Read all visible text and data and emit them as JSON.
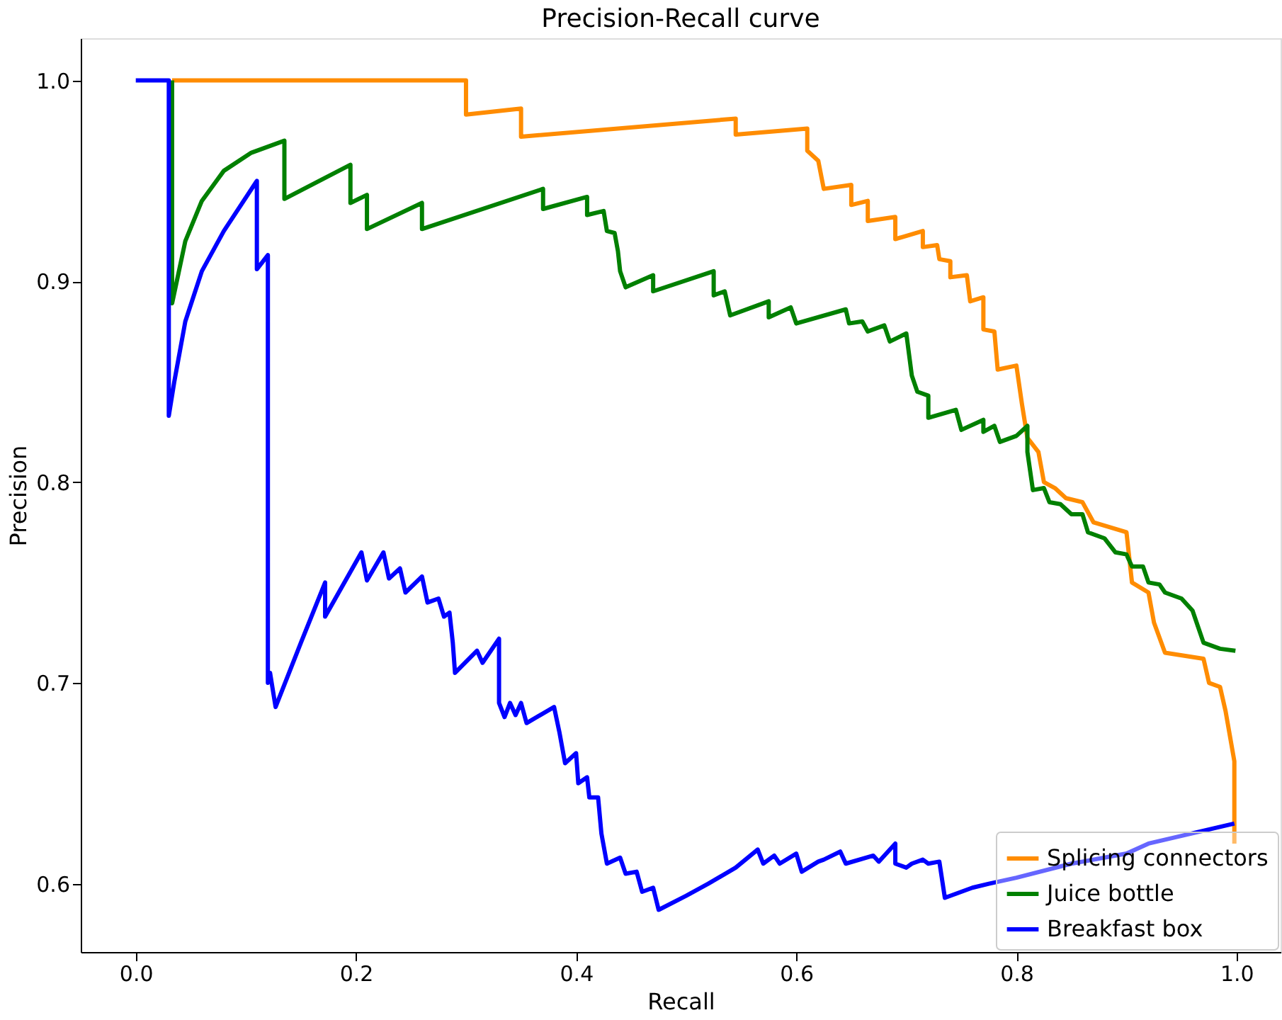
{
  "chart_data": {
    "type": "line",
    "title": "Precision-Recall curve",
    "xlabel": "Recall",
    "ylabel": "Precision",
    "xlim": [
      -0.05,
      1.04
    ],
    "ylim": [
      0.566,
      1.021
    ],
    "xticks": [
      {
        "value": 0,
        "label": "0.0"
      },
      {
        "value": 0.2,
        "label": "0.2"
      },
      {
        "value": 0.4,
        "label": "0.4"
      },
      {
        "value": 0.6,
        "label": "0.6"
      },
      {
        "value": 0.8,
        "label": "0.8"
      },
      {
        "value": 1,
        "label": "1.0"
      }
    ],
    "yticks": [
      {
        "value": 0.6,
        "label": "0.6"
      },
      {
        "value": 0.7,
        "label": "0.7"
      },
      {
        "value": 0.8,
        "label": "0.8"
      },
      {
        "value": 0.9,
        "label": "0.9"
      },
      {
        "value": 1,
        "label": "1.0"
      }
    ],
    "grid": false,
    "legend": "bottom right",
    "line_style": "solid",
    "marker": "none",
    "series": [
      {
        "name": "Splicing connectors",
        "color": "#ff8c00",
        "x": [
          0.033,
          0.3,
          0.3,
          0.35,
          0.35,
          0.545,
          0.545,
          0.61,
          0.61,
          0.62,
          0.625,
          0.65,
          0.65,
          0.665,
          0.665,
          0.69,
          0.69,
          0.715,
          0.715,
          0.728,
          0.73,
          0.74,
          0.74,
          0.755,
          0.758,
          0.77,
          0.77,
          0.78,
          0.783,
          0.8,
          0.805,
          0.81,
          0.82,
          0.825,
          0.835,
          0.845,
          0.86,
          0.87,
          0.9,
          0.905,
          0.92,
          0.925,
          0.935,
          0.97,
          0.975,
          0.985,
          0.99,
          0.998,
          0.998
        ],
        "values": [
          1.0,
          1.0,
          0.983,
          0.986,
          0.972,
          0.981,
          0.973,
          0.976,
          0.965,
          0.96,
          0.946,
          0.948,
          0.938,
          0.94,
          0.93,
          0.932,
          0.921,
          0.925,
          0.917,
          0.918,
          0.911,
          0.91,
          0.902,
          0.903,
          0.89,
          0.892,
          0.876,
          0.875,
          0.856,
          0.858,
          0.839,
          0.822,
          0.815,
          0.8,
          0.797,
          0.792,
          0.79,
          0.78,
          0.775,
          0.75,
          0.745,
          0.73,
          0.715,
          0.712,
          0.7,
          0.698,
          0.686,
          0.661,
          0.62
        ]
      },
      {
        "name": "Juice bottle",
        "color": "#008000",
        "x": [
          0.033,
          0.033,
          0.045,
          0.06,
          0.08,
          0.105,
          0.135,
          0.135,
          0.195,
          0.195,
          0.21,
          0.21,
          0.26,
          0.26,
          0.37,
          0.37,
          0.41,
          0.41,
          0.425,
          0.428,
          0.435,
          0.438,
          0.44,
          0.445,
          0.47,
          0.47,
          0.525,
          0.525,
          0.535,
          0.54,
          0.575,
          0.575,
          0.595,
          0.6,
          0.645,
          0.648,
          0.66,
          0.665,
          0.68,
          0.685,
          0.7,
          0.705,
          0.71,
          0.72,
          0.72,
          0.745,
          0.75,
          0.77,
          0.77,
          0.78,
          0.785,
          0.8,
          0.81,
          0.81,
          0.815,
          0.825,
          0.83,
          0.84,
          0.85,
          0.86,
          0.865,
          0.88,
          0.89,
          0.9,
          0.905,
          0.915,
          0.92,
          0.93,
          0.935,
          0.95,
          0.96,
          0.965,
          0.97,
          0.985,
          0.999
        ],
        "values": [
          1.0,
          0.889,
          0.92,
          0.94,
          0.955,
          0.964,
          0.97,
          0.941,
          0.958,
          0.939,
          0.943,
          0.926,
          0.939,
          0.926,
          0.946,
          0.936,
          0.942,
          0.933,
          0.935,
          0.925,
          0.924,
          0.915,
          0.905,
          0.897,
          0.903,
          0.895,
          0.905,
          0.893,
          0.895,
          0.883,
          0.89,
          0.882,
          0.887,
          0.879,
          0.886,
          0.879,
          0.88,
          0.875,
          0.878,
          0.87,
          0.874,
          0.853,
          0.845,
          0.843,
          0.832,
          0.836,
          0.826,
          0.831,
          0.825,
          0.828,
          0.82,
          0.823,
          0.828,
          0.815,
          0.796,
          0.797,
          0.79,
          0.789,
          0.784,
          0.784,
          0.775,
          0.772,
          0.765,
          0.764,
          0.758,
          0.758,
          0.75,
          0.749,
          0.745,
          0.742,
          0.736,
          0.728,
          0.72,
          0.717,
          0.716
        ]
      },
      {
        "name": "Breakfast box",
        "color": "#0000ff",
        "x": [
          0,
          0.03,
          0.03,
          0.035,
          0.045,
          0.06,
          0.08,
          0.11,
          0.11,
          0.12,
          0.12,
          0.122,
          0.127,
          0.15,
          0.172,
          0.172,
          0.205,
          0.21,
          0.225,
          0.23,
          0.24,
          0.245,
          0.26,
          0.265,
          0.275,
          0.28,
          0.285,
          0.288,
          0.29,
          0.31,
          0.315,
          0.33,
          0.33,
          0.335,
          0.34,
          0.345,
          0.35,
          0.355,
          0.38,
          0.385,
          0.39,
          0.4,
          0.402,
          0.41,
          0.412,
          0.42,
          0.423,
          0.428,
          0.44,
          0.445,
          0.455,
          0.46,
          0.47,
          0.475,
          0.5,
          0.52,
          0.545,
          0.565,
          0.57,
          0.58,
          0.585,
          0.6,
          0.605,
          0.62,
          0.625,
          0.64,
          0.645,
          0.67,
          0.675,
          0.69,
          0.69,
          0.7,
          0.705,
          0.715,
          0.72,
          0.73,
          0.735,
          0.76,
          0.775,
          0.8,
          0.85,
          0.9,
          0.92,
          0.998
        ],
        "values": [
          1.0,
          1.0,
          0.833,
          0.85,
          0.88,
          0.905,
          0.925,
          0.95,
          0.906,
          0.913,
          0.7,
          0.705,
          0.688,
          0.72,
          0.75,
          0.733,
          0.765,
          0.751,
          0.765,
          0.752,
          0.757,
          0.745,
          0.753,
          0.74,
          0.742,
          0.733,
          0.735,
          0.72,
          0.705,
          0.716,
          0.71,
          0.722,
          0.69,
          0.683,
          0.69,
          0.684,
          0.69,
          0.68,
          0.688,
          0.675,
          0.66,
          0.665,
          0.65,
          0.653,
          0.643,
          0.643,
          0.625,
          0.61,
          0.613,
          0.605,
          0.606,
          0.596,
          0.598,
          0.587,
          0.594,
          0.6,
          0.608,
          0.617,
          0.61,
          0.614,
          0.61,
          0.615,
          0.606,
          0.611,
          0.612,
          0.616,
          0.61,
          0.614,
          0.611,
          0.62,
          0.61,
          0.608,
          0.61,
          0.612,
          0.61,
          0.611,
          0.593,
          0.598,
          0.6,
          0.603,
          0.61,
          0.615,
          0.62,
          0.63
        ]
      }
    ]
  }
}
